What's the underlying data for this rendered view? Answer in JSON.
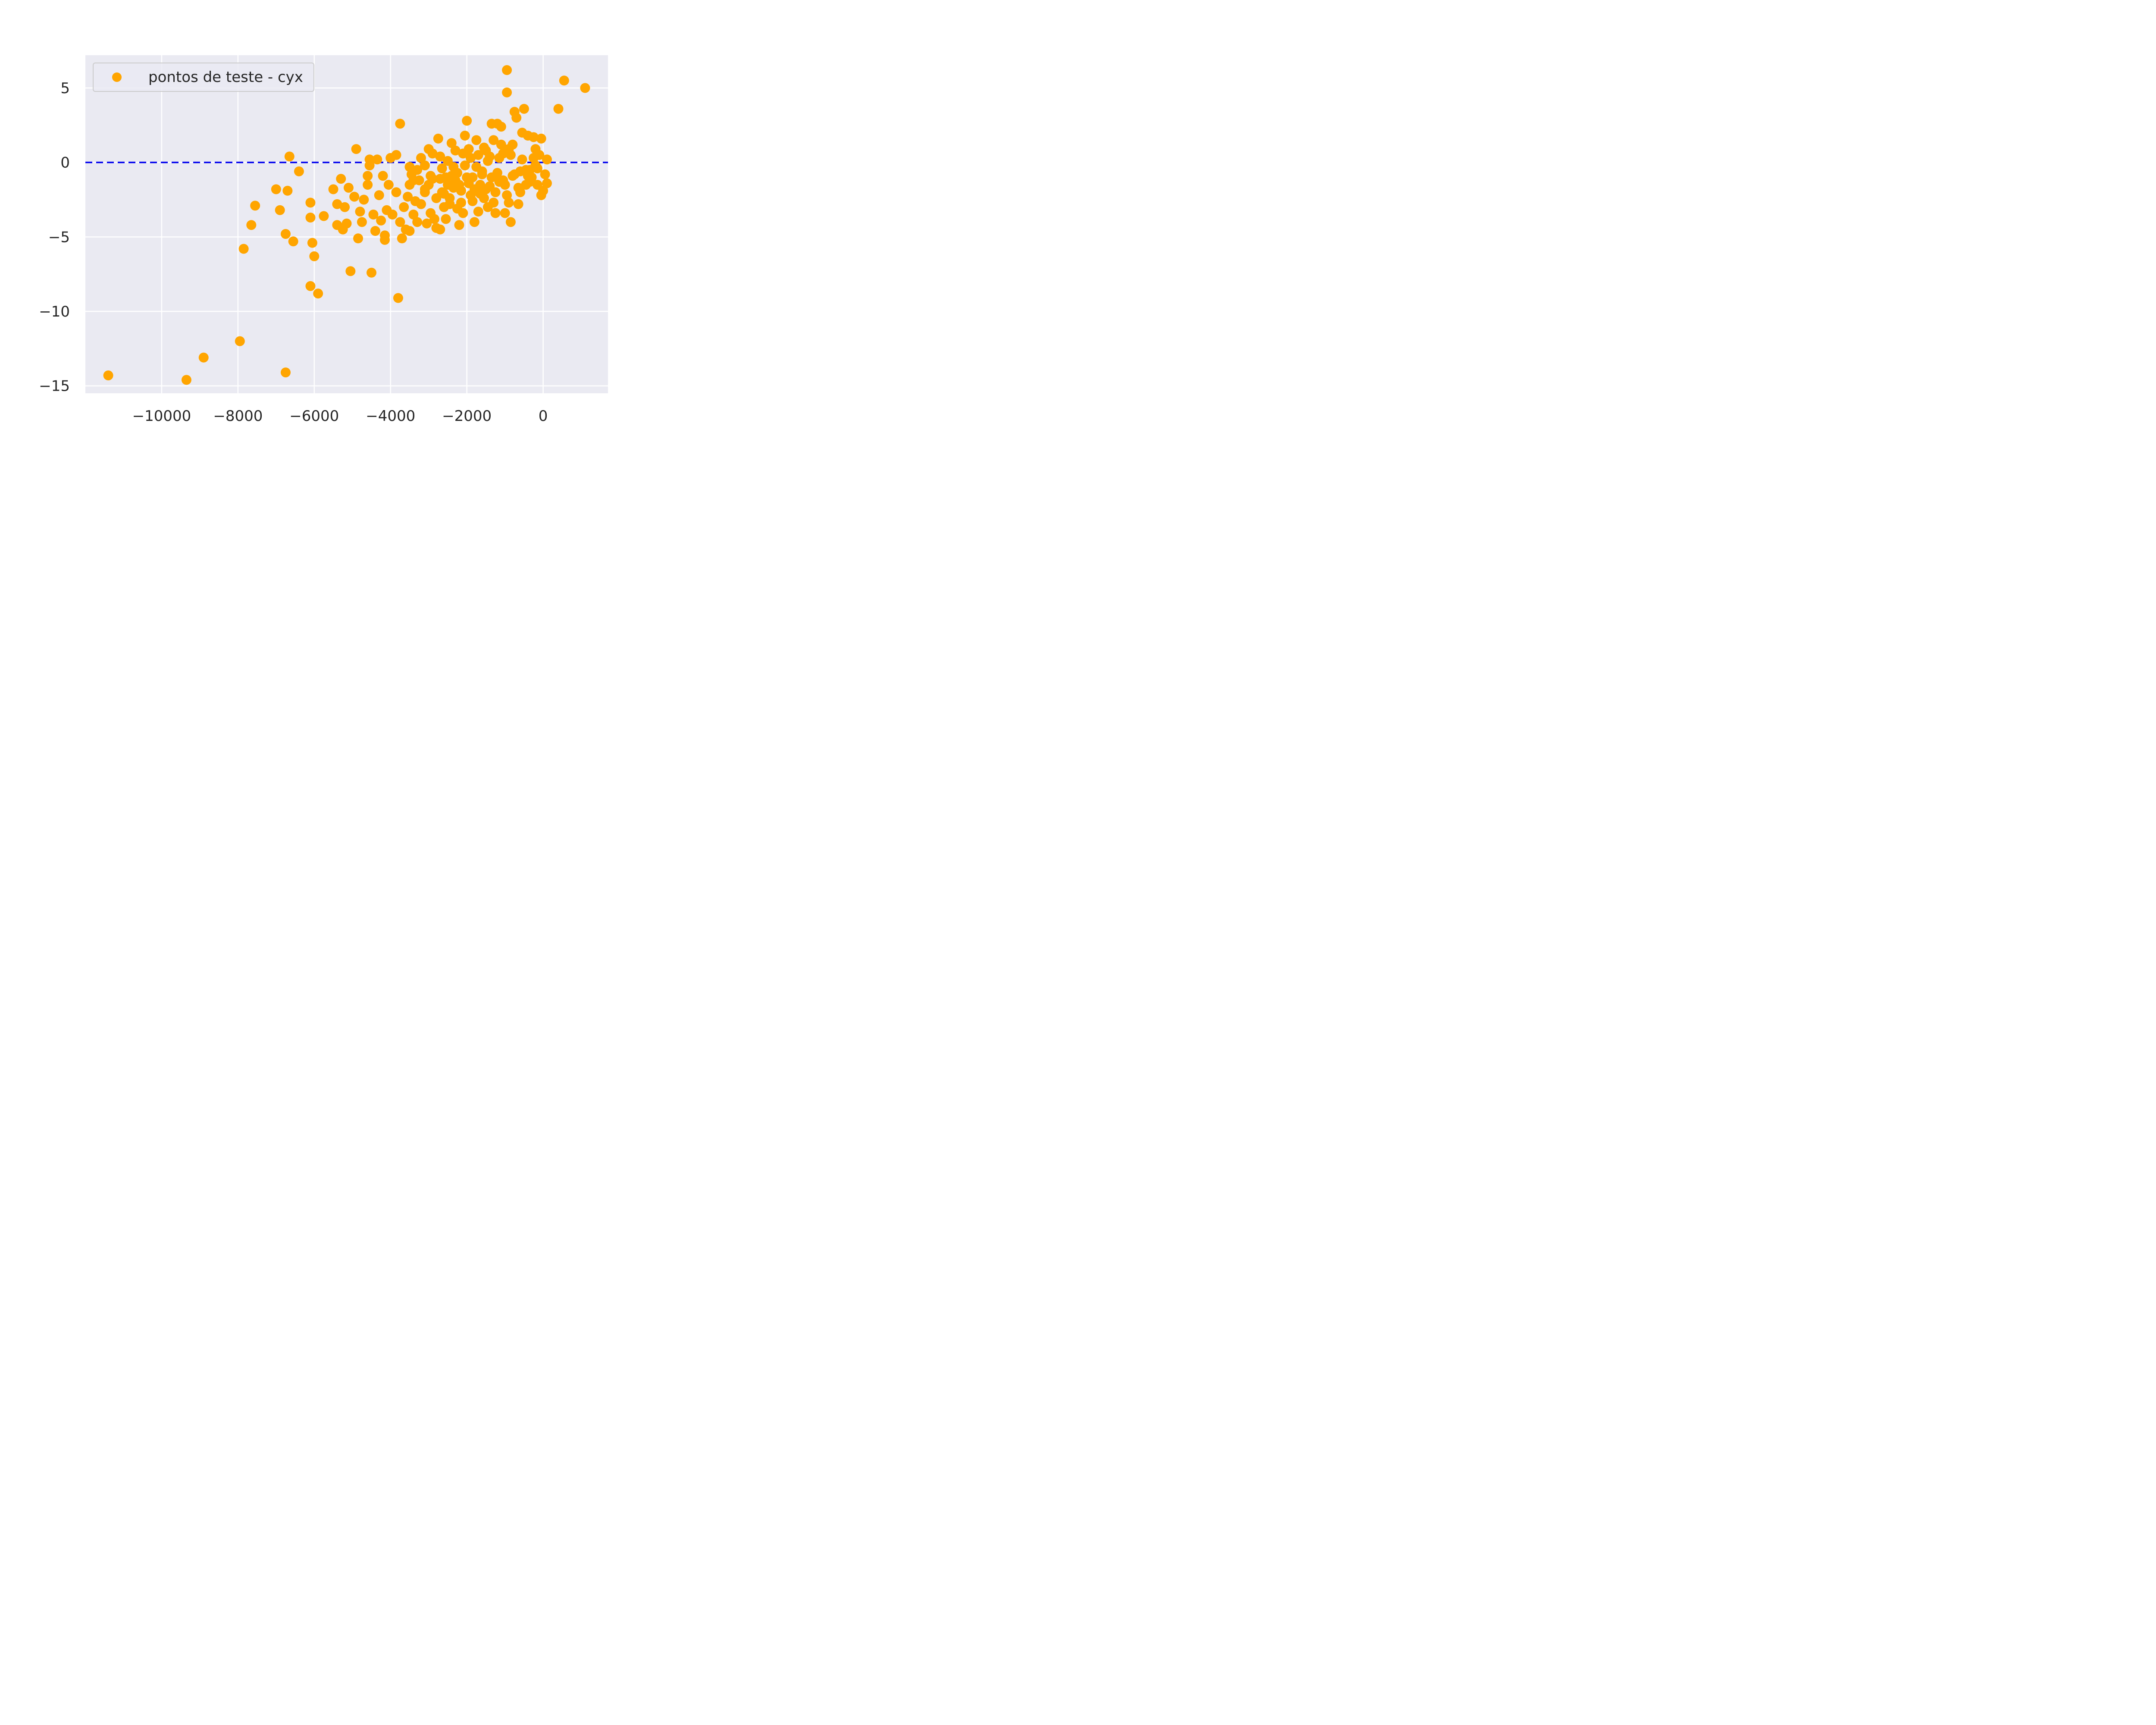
{
  "chart_data": {
    "type": "scatter",
    "title": "",
    "xlabel": "",
    "ylabel": "",
    "xlim": [
      -12000,
      1700
    ],
    "ylim": [
      -15.5,
      7.2
    ],
    "x_ticks": [
      -10000,
      -8000,
      -6000,
      -4000,
      -2000,
      0
    ],
    "x_tick_labels": [
      "−10000",
      "−8000",
      "−6000",
      "−4000",
      "−2000",
      "0"
    ],
    "y_ticks": [
      5,
      0,
      -5,
      -10,
      -15
    ],
    "y_tick_labels": [
      "5",
      "0",
      "−5",
      "−10",
      "−15"
    ],
    "grid": true,
    "legend_position": "top-left",
    "reference_line": {
      "y": 0,
      "style": "dashed",
      "color": "#0000ee"
    },
    "colors": {
      "points": "#FFA500",
      "background": "#EAEAF2",
      "grid": "#FFFFFF",
      "text": "#262626"
    },
    "series": [
      {
        "name": "pontos de teste - cyx",
        "points": [
          [
            -11400,
            -14.3
          ],
          [
            -9350,
            -14.6
          ],
          [
            -8900,
            -13.1
          ],
          [
            -7950,
            -12.0
          ],
          [
            -6750,
            -14.1
          ],
          [
            -7850,
            -5.8
          ],
          [
            -7650,
            -4.2
          ],
          [
            -7550,
            -2.9
          ],
          [
            -7000,
            -1.8
          ],
          [
            -6900,
            -3.2
          ],
          [
            -6750,
            -4.8
          ],
          [
            -6700,
            -1.9
          ],
          [
            -6650,
            0.4
          ],
          [
            -6550,
            -5.3
          ],
          [
            -6400,
            -0.6
          ],
          [
            -6100,
            -2.7
          ],
          [
            -6100,
            -3.7
          ],
          [
            -6050,
            -5.4
          ],
          [
            -6000,
            -6.3
          ],
          [
            -6100,
            -8.3
          ],
          [
            -5900,
            -8.8
          ],
          [
            -5750,
            -3.6
          ],
          [
            -5500,
            -1.8
          ],
          [
            -5400,
            -2.8
          ],
          [
            -5400,
            -4.2
          ],
          [
            -5300,
            -1.1
          ],
          [
            -5250,
            -4.5
          ],
          [
            -5200,
            -3.0
          ],
          [
            -5150,
            -4.1
          ],
          [
            -5100,
            -1.7
          ],
          [
            -5050,
            -7.3
          ],
          [
            -4950,
            -2.3
          ],
          [
            -4900,
            0.9
          ],
          [
            -4850,
            -5.1
          ],
          [
            -4800,
            -3.3
          ],
          [
            -4750,
            -4.0
          ],
          [
            -4700,
            -2.5
          ],
          [
            -4600,
            -1.5
          ],
          [
            -4600,
            -0.9
          ],
          [
            -4550,
            0.2
          ],
          [
            -4550,
            -0.2
          ],
          [
            -4500,
            -7.4
          ],
          [
            -4450,
            -3.5
          ],
          [
            -4400,
            -4.6
          ],
          [
            -4350,
            0.2
          ],
          [
            -4300,
            -2.2
          ],
          [
            -4250,
            -3.9
          ],
          [
            -4200,
            -0.9
          ],
          [
            -4150,
            -4.9
          ],
          [
            -4150,
            -5.2
          ],
          [
            -4100,
            -3.2
          ],
          [
            -4050,
            -1.5
          ],
          [
            -4000,
            0.3
          ],
          [
            -3950,
            -3.5
          ],
          [
            -3850,
            -2.0
          ],
          [
            -3850,
            0.5
          ],
          [
            -3800,
            -9.1
          ],
          [
            -3750,
            2.6
          ],
          [
            -3750,
            -4.0
          ],
          [
            -3700,
            -5.1
          ],
          [
            -3650,
            -3.0
          ],
          [
            -3600,
            -4.5
          ],
          [
            -3550,
            -2.3
          ],
          [
            -3500,
            -1.5
          ],
          [
            -3500,
            -4.6
          ],
          [
            -3450,
            -0.8
          ],
          [
            -3400,
            -3.5
          ],
          [
            -3350,
            -2.6
          ],
          [
            -3300,
            -4.0
          ],
          [
            -3250,
            -1.2
          ],
          [
            -3200,
            0.3
          ],
          [
            -3100,
            -2.0
          ],
          [
            -3050,
            -4.1
          ],
          [
            -3000,
            0.9
          ],
          [
            -2950,
            -3.4
          ],
          [
            -2900,
            -1.1
          ],
          [
            -2850,
            -3.8
          ],
          [
            -2800,
            -4.4
          ],
          [
            -2750,
            1.6
          ],
          [
            -2700,
            -4.5
          ],
          [
            -2650,
            -2.0
          ],
          [
            -2600,
            -3.0
          ],
          [
            -2550,
            -3.8
          ],
          [
            -2500,
            -1.5
          ],
          [
            -2450,
            -2.4
          ],
          [
            -2400,
            1.3
          ],
          [
            -2350,
            -0.3
          ],
          [
            -2300,
            -1.2
          ],
          [
            -2250,
            -3.1
          ],
          [
            -2200,
            -4.2
          ],
          [
            -2150,
            -2.7
          ],
          [
            -2100,
            -3.4
          ],
          [
            -2050,
            1.8
          ],
          [
            -2000,
            2.8
          ],
          [
            -1950,
            0.9
          ],
          [
            -1900,
            -2.2
          ],
          [
            -1850,
            -1.0
          ],
          [
            -1800,
            -4.0
          ],
          [
            -1750,
            1.5
          ],
          [
            -1700,
            -3.3
          ],
          [
            -1650,
            -2.1
          ],
          [
            -1600,
            -0.6
          ],
          [
            -1550,
            1.0
          ],
          [
            -1500,
            -1.8
          ],
          [
            -1450,
            -3.0
          ],
          [
            -1400,
            0.4
          ],
          [
            -1350,
            2.6
          ],
          [
            -1300,
            -2.7
          ],
          [
            -1250,
            -3.4
          ],
          [
            -1200,
            2.6
          ],
          [
            -1150,
            -1.3
          ],
          [
            -1100,
            2.4
          ],
          [
            -1050,
            0.6
          ],
          [
            -1000,
            -3.4
          ],
          [
            -950,
            6.2
          ],
          [
            -950,
            4.7
          ],
          [
            -900,
            -2.7
          ],
          [
            -850,
            -4.0
          ],
          [
            -800,
            1.2
          ],
          [
            -750,
            3.4
          ],
          [
            -700,
            3.0
          ],
          [
            -650,
            -2.8
          ],
          [
            -600,
            -2.0
          ],
          [
            -550,
            2.0
          ],
          [
            -500,
            3.6
          ],
          [
            -450,
            -1.5
          ],
          [
            -400,
            1.8
          ],
          [
            -350,
            -0.5
          ],
          [
            -300,
            -1.0
          ],
          [
            -250,
            1.7
          ],
          [
            -200,
            0.9
          ],
          [
            -150,
            -1.5
          ],
          [
            -100,
            0.5
          ],
          [
            -50,
            -2.2
          ],
          [
            -50,
            1.6
          ],
          [
            0,
            -1.9
          ],
          [
            50,
            -0.8
          ],
          [
            100,
            -1.4
          ],
          [
            100,
            0.2
          ],
          [
            400,
            3.6
          ],
          [
            550,
            5.5
          ],
          [
            1100,
            5.0
          ],
          [
            -3300,
            -0.5
          ],
          [
            -3100,
            -1.8
          ],
          [
            -2950,
            -0.9
          ],
          [
            -2800,
            -2.4
          ],
          [
            -2650,
            -0.4
          ],
          [
            -2550,
            -1.0
          ],
          [
            -2450,
            -2.8
          ],
          [
            -2350,
            -1.7
          ],
          [
            -2250,
            -0.7
          ],
          [
            -2150,
            -1.9
          ],
          [
            -2050,
            -0.2
          ],
          [
            -1950,
            -1.4
          ],
          [
            -1850,
            -2.6
          ],
          [
            -1750,
            -0.3
          ],
          [
            -1650,
            -1.5
          ],
          [
            -1550,
            -2.4
          ],
          [
            -1450,
            0.1
          ],
          [
            -1350,
            -1.0
          ],
          [
            -1250,
            -2.0
          ],
          [
            -1150,
            0.3
          ],
          [
            -1050,
            -1.2
          ],
          [
            -950,
            -2.2
          ],
          [
            -850,
            0.5
          ],
          [
            -750,
            -0.8
          ],
          [
            -650,
            -1.7
          ],
          [
            -550,
            0.2
          ],
          [
            -450,
            -0.5
          ],
          [
            -350,
            -1.3
          ],
          [
            -250,
            0.3
          ],
          [
            -150,
            -0.4
          ],
          [
            -3400,
            -1.2
          ],
          [
            -3200,
            -2.8
          ],
          [
            -3000,
            -1.5
          ],
          [
            -2700,
            -1.1
          ],
          [
            -2600,
            -2.1
          ],
          [
            -2400,
            -0.9
          ],
          [
            -2200,
            -1.5
          ],
          [
            -2000,
            -1.0
          ],
          [
            -1800,
            -1.8
          ],
          [
            -1600,
            -0.8
          ],
          [
            -1400,
            -1.6
          ],
          [
            -1200,
            -0.7
          ],
          [
            -1000,
            -1.5
          ],
          [
            -800,
            -0.9
          ],
          [
            -600,
            -0.6
          ],
          [
            -400,
            -0.9
          ],
          [
            -200,
            -0.2
          ],
          [
            -1300,
            1.5
          ],
          [
            -1100,
            1.2
          ],
          [
            -900,
            0.9
          ],
          [
            -1500,
            0.8
          ],
          [
            -1700,
            0.5
          ],
          [
            -1900,
            0.3
          ],
          [
            -2100,
            0.6
          ],
          [
            -2300,
            0.8
          ],
          [
            -2500,
            0.1
          ],
          [
            -2700,
            0.4
          ],
          [
            -2900,
            0.6
          ],
          [
            -3100,
            -0.2
          ],
          [
            -3500,
            -0.3
          ]
        ]
      }
    ]
  }
}
